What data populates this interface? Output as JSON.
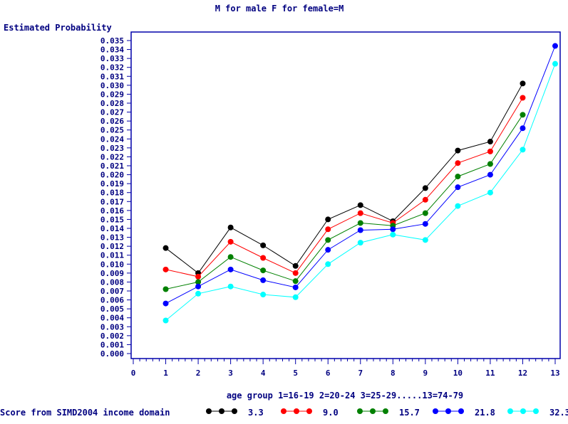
{
  "chart_data": {
    "type": "line",
    "title": "M for male F for female=M",
    "ylabel": "Estimated Probability",
    "xlabel": "age group 1=16-19 2=20-24 3=25-29.....13=74-79",
    "legend_title": "Score from SIMD2004 income domain",
    "legend_position": "bottom",
    "xlim": [
      0,
      13
    ],
    "ylim": [
      0.0,
      0.035
    ],
    "x_ticks": [
      "0",
      "1",
      "2",
      "3",
      "4",
      "5",
      "6",
      "7",
      "8",
      "9",
      "10",
      "11",
      "12",
      "13"
    ],
    "y_ticks": [
      "0.000",
      "0.001",
      "0.002",
      "0.003",
      "0.004",
      "0.005",
      "0.006",
      "0.007",
      "0.008",
      "0.009",
      "0.010",
      "0.011",
      "0.012",
      "0.013",
      "0.014",
      "0.015",
      "0.016",
      "0.017",
      "0.018",
      "0.019",
      "0.020",
      "0.021",
      "0.022",
      "0.023",
      "0.024",
      "0.025",
      "0.026",
      "0.027",
      "0.028",
      "0.029",
      "0.030",
      "0.031",
      "0.032",
      "0.033",
      "0.034",
      "0.035"
    ],
    "grid": false,
    "series": [
      {
        "name": "3.3",
        "color": "#000000",
        "x": [
          1,
          2,
          3,
          4,
          5,
          6,
          7,
          8,
          9,
          10,
          11,
          12
        ],
        "values": [
          0.0118,
          0.009,
          0.0141,
          0.0121,
          0.0098,
          0.015,
          0.0166,
          0.0148,
          0.0185,
          0.0227,
          0.0237,
          0.0302
        ]
      },
      {
        "name": "9.0",
        "color": "#ff0000",
        "x": [
          1,
          2,
          3,
          4,
          5,
          6,
          7,
          8,
          9,
          10,
          11,
          12
        ],
        "values": [
          0.0094,
          0.0086,
          0.0125,
          0.0107,
          0.009,
          0.0139,
          0.0157,
          0.0146,
          0.0172,
          0.0213,
          0.0226,
          0.0286
        ]
      },
      {
        "name": "15.7",
        "color": "#008000",
        "x": [
          1,
          2,
          3,
          4,
          5,
          6,
          7,
          8,
          9,
          10,
          11,
          12
        ],
        "values": [
          0.0072,
          0.008,
          0.0108,
          0.0093,
          0.0081,
          0.0127,
          0.0146,
          0.0143,
          0.0157,
          0.0198,
          0.0212,
          0.0267
        ]
      },
      {
        "name": "21.8",
        "color": "#0000ff",
        "x": [
          1,
          2,
          3,
          4,
          5,
          6,
          7,
          8,
          9,
          10,
          11,
          12,
          13
        ],
        "values": [
          0.0056,
          0.0075,
          0.0094,
          0.0082,
          0.0074,
          0.0116,
          0.0138,
          0.0139,
          0.0145,
          0.0186,
          0.02,
          0.0252,
          0.0344
        ]
      },
      {
        "name": "32.3",
        "color": "#00ffff",
        "x": [
          1,
          2,
          3,
          4,
          5,
          6,
          7,
          8,
          9,
          10,
          11,
          12,
          13
        ],
        "values": [
          0.0037,
          0.0067,
          0.0075,
          0.0066,
          0.0063,
          0.01,
          0.0124,
          0.0133,
          0.0127,
          0.0165,
          0.018,
          0.0228,
          0.0324
        ]
      }
    ]
  }
}
